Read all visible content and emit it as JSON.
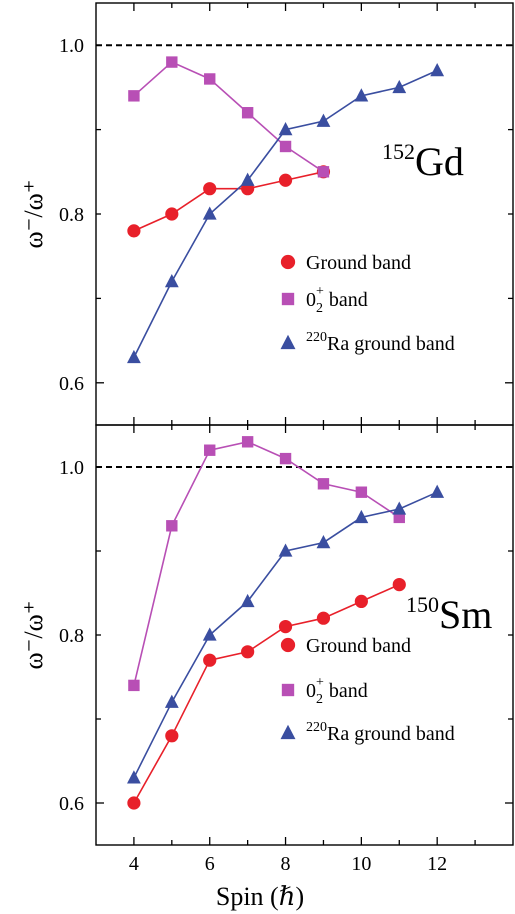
{
  "chart_data": [
    {
      "type": "line",
      "nucleus": {
        "mass": "152",
        "symbol": "Gd"
      },
      "ylabel": "ω⁻/ω⁺",
      "xlim": [
        3,
        14
      ],
      "ylim": [
        0.55,
        1.05
      ],
      "yticks": [
        "0.6",
        "0.8",
        "1.0"
      ],
      "reference_line": 1.0,
      "legend": [
        {
          "prefix": "",
          "sup": "",
          "sub": "",
          "after": "Ground band",
          "series": 0
        },
        {
          "prefix": "0",
          "sub": "2",
          "sup": "+",
          "after": " band",
          "series": 1
        },
        {
          "prefix": "",
          "sup": "220",
          "sub": "",
          "after": "Ra ground band",
          "series": 2
        }
      ],
      "series": [
        {
          "x": [
            4,
            5,
            6,
            7,
            8,
            9
          ],
          "y": [
            0.78,
            0.8,
            0.83,
            0.83,
            0.84,
            0.85
          ],
          "color": "#e8202a",
          "marker": "circle",
          "line": "#e8202a"
        },
        {
          "x": [
            4,
            5,
            6,
            7,
            8,
            9
          ],
          "y": [
            0.94,
            0.98,
            0.96,
            0.92,
            0.88,
            0.85
          ],
          "color": "#b84fb5",
          "marker": "square",
          "line": "#b84fb5"
        },
        {
          "x": [
            4,
            5,
            6,
            7,
            8,
            9,
            10,
            11,
            12
          ],
          "y": [
            0.63,
            0.72,
            0.8,
            0.84,
            0.9,
            0.91,
            0.94,
            0.95,
            0.97
          ],
          "color": "#3a4ea0",
          "marker": "triangle",
          "line": "#3a4ea0"
        }
      ]
    },
    {
      "type": "line",
      "nucleus": {
        "mass": "150",
        "symbol": "Sm"
      },
      "ylabel": "ω⁻/ω⁺",
      "xlim": [
        3,
        14
      ],
      "ylim": [
        0.55,
        1.05
      ],
      "yticks": [
        "0.6",
        "0.8",
        "1.0"
      ],
      "xticks": [
        "4",
        "6",
        "8",
        "10",
        "12"
      ],
      "xlabel": "Spin (ℏ)",
      "reference_line": 1.0,
      "legend": [
        {
          "prefix": "",
          "sup": "",
          "sub": "",
          "after": "Ground band",
          "series": 0
        },
        {
          "prefix": "0",
          "sub": "2",
          "sup": "+",
          "after": " band",
          "series": 1
        },
        {
          "prefix": "",
          "sup": "220",
          "sub": "",
          "after": "Ra ground band",
          "series": 2
        }
      ],
      "series": [
        {
          "x": [
            4,
            5,
            6,
            7,
            8,
            9,
            10,
            11
          ],
          "y": [
            0.6,
            0.68,
            0.77,
            0.78,
            0.81,
            0.82,
            0.84,
            0.86
          ],
          "color": "#e8202a",
          "marker": "circle",
          "line": "#e8202a"
        },
        {
          "x": [
            4,
            5,
            6,
            7,
            8,
            9,
            10,
            11
          ],
          "y": [
            0.74,
            0.93,
            1.02,
            1.03,
            1.01,
            0.98,
            0.97,
            0.94
          ],
          "color": "#b84fb5",
          "marker": "square",
          "line": "#b84fb5"
        },
        {
          "x": [
            4,
            5,
            6,
            7,
            8,
            9,
            10,
            11,
            12
          ],
          "y": [
            0.63,
            0.72,
            0.8,
            0.84,
            0.9,
            0.91,
            0.94,
            0.95,
            0.97
          ],
          "color": "#3a4ea0",
          "marker": "triangle",
          "line": "#3a4ea0"
        }
      ]
    }
  ]
}
